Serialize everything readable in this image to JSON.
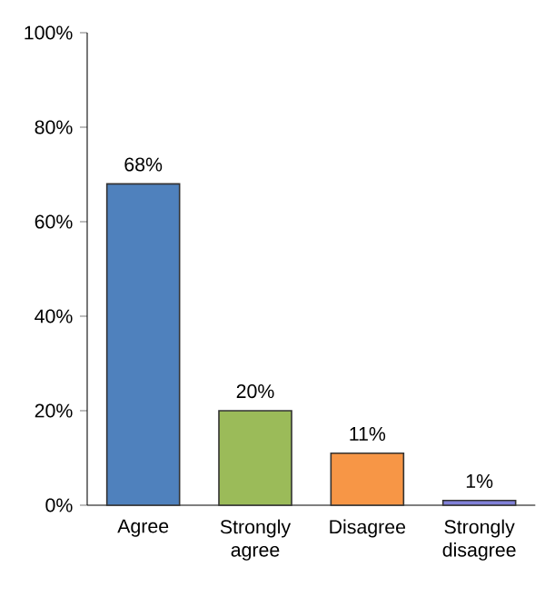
{
  "chart_data": {
    "type": "bar",
    "categories": [
      "Agree",
      "Strongly agree",
      "Disagree",
      "Strongly disagree"
    ],
    "values": [
      68,
      20,
      11,
      1
    ],
    "colors": [
      "#4f81bd",
      "#9bbb59",
      "#f79646",
      "#8080d8"
    ],
    "value_labels": [
      "68%",
      "20%",
      "11%",
      "1%"
    ],
    "ylim": [
      0,
      100
    ],
    "yticks": [
      {
        "value": 0,
        "label": "0%"
      },
      {
        "value": 20,
        "label": "20%"
      },
      {
        "value": 40,
        "label": "40%"
      },
      {
        "value": 60,
        "label": "60%"
      },
      {
        "value": 80,
        "label": "80%"
      },
      {
        "value": 100,
        "label": "100%"
      }
    ],
    "grid": false
  }
}
